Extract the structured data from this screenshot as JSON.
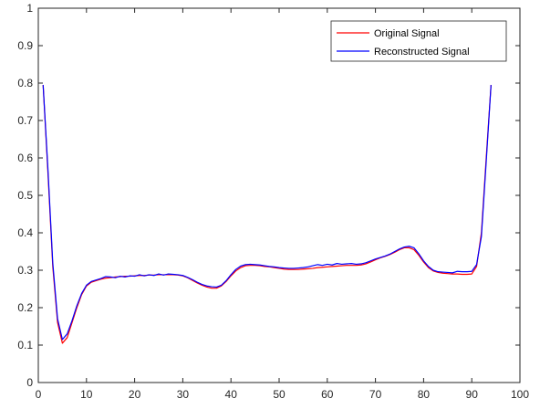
{
  "chart_data": {
    "type": "line",
    "title": "",
    "xlabel": "",
    "ylabel": "",
    "xlim": [
      0,
      100
    ],
    "ylim": [
      0,
      1
    ],
    "xticks": [
      0,
      10,
      20,
      30,
      40,
      50,
      60,
      70,
      80,
      90,
      100
    ],
    "yticks": [
      0,
      0.1,
      0.2,
      0.3,
      0.4,
      0.5,
      0.6,
      0.7,
      0.8,
      0.9,
      1
    ],
    "grid": false,
    "legend_position": "top-right",
    "x": [
      1,
      2,
      3,
      4,
      5,
      6,
      7,
      8,
      9,
      10,
      11,
      12,
      13,
      14,
      15,
      16,
      17,
      18,
      19,
      20,
      21,
      22,
      23,
      24,
      25,
      26,
      27,
      28,
      29,
      30,
      31,
      32,
      33,
      34,
      35,
      36,
      37,
      38,
      39,
      40,
      41,
      42,
      43,
      44,
      45,
      46,
      47,
      48,
      49,
      50,
      51,
      52,
      53,
      54,
      55,
      56,
      57,
      58,
      59,
      60,
      61,
      62,
      63,
      64,
      65,
      66,
      67,
      68,
      69,
      70,
      71,
      72,
      73,
      74,
      75,
      76,
      77,
      78,
      79,
      80,
      81,
      82,
      83,
      84,
      85,
      86,
      87,
      88,
      89,
      90,
      91,
      92,
      93,
      94
    ],
    "series": [
      {
        "name": "Original Signal",
        "color": "#ff0000",
        "values": [
          0.795,
          0.56,
          0.31,
          0.16,
          0.105,
          0.12,
          0.16,
          0.2,
          0.235,
          0.258,
          0.268,
          0.272,
          0.276,
          0.279,
          0.28,
          0.282,
          0.283,
          0.284,
          0.284,
          0.285,
          0.286,
          0.286,
          0.287,
          0.287,
          0.288,
          0.288,
          0.288,
          0.288,
          0.287,
          0.285,
          0.28,
          0.273,
          0.266,
          0.26,
          0.255,
          0.252,
          0.252,
          0.258,
          0.27,
          0.285,
          0.298,
          0.307,
          0.312,
          0.313,
          0.313,
          0.312,
          0.31,
          0.309,
          0.307,
          0.305,
          0.303,
          0.302,
          0.302,
          0.302,
          0.303,
          0.304,
          0.305,
          0.307,
          0.308,
          0.309,
          0.31,
          0.311,
          0.312,
          0.313,
          0.313,
          0.313,
          0.314,
          0.317,
          0.322,
          0.328,
          0.333,
          0.337,
          0.342,
          0.348,
          0.355,
          0.36,
          0.36,
          0.355,
          0.34,
          0.322,
          0.307,
          0.298,
          0.294,
          0.292,
          0.291,
          0.29,
          0.29,
          0.289,
          0.289,
          0.29,
          0.31,
          0.4,
          0.6,
          0.795
        ]
      },
      {
        "name": "Reconstructed Signal",
        "color": "#0000ff",
        "values": [
          0.795,
          0.57,
          0.32,
          0.17,
          0.115,
          0.13,
          0.165,
          0.205,
          0.238,
          0.26,
          0.27,
          0.274,
          0.278,
          0.283,
          0.282,
          0.28,
          0.284,
          0.282,
          0.285,
          0.284,
          0.288,
          0.285,
          0.288,
          0.286,
          0.29,
          0.287,
          0.29,
          0.289,
          0.288,
          0.286,
          0.281,
          0.275,
          0.268,
          0.262,
          0.258,
          0.256,
          0.255,
          0.26,
          0.272,
          0.288,
          0.302,
          0.311,
          0.315,
          0.316,
          0.315,
          0.314,
          0.312,
          0.31,
          0.309,
          0.307,
          0.306,
          0.305,
          0.305,
          0.306,
          0.307,
          0.309,
          0.312,
          0.315,
          0.313,
          0.316,
          0.314,
          0.318,
          0.316,
          0.317,
          0.318,
          0.316,
          0.317,
          0.32,
          0.325,
          0.33,
          0.334,
          0.338,
          0.343,
          0.35,
          0.357,
          0.362,
          0.364,
          0.36,
          0.344,
          0.325,
          0.31,
          0.3,
          0.296,
          0.295,
          0.294,
          0.293,
          0.297,
          0.296,
          0.296,
          0.297,
          0.315,
          0.39,
          0.59,
          0.795
        ]
      }
    ]
  }
}
